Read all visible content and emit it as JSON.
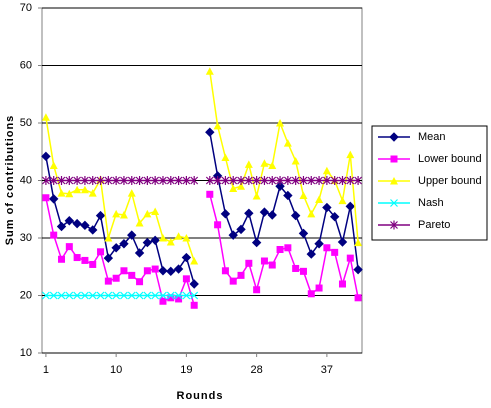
{
  "chart_data": {
    "type": "line",
    "xlabel": "Rounds",
    "ylabel": "Sum of contributions",
    "categories": [
      "1",
      null,
      null,
      null,
      null,
      null,
      null,
      null,
      null,
      "10",
      null,
      null,
      null,
      null,
      null,
      null,
      null,
      null,
      "19",
      null,
      null,
      null,
      null,
      null,
      null,
      null,
      null,
      "28",
      null,
      null,
      null,
      null,
      null,
      null,
      null,
      null,
      "37",
      null,
      null,
      null,
      null
    ],
    "ylim": [
      10,
      70
    ],
    "yticks": [
      10,
      20,
      30,
      40,
      50,
      60,
      70
    ],
    "grid": true,
    "legend": "right",
    "series": [
      {
        "name": "Mean",
        "color": "#000080",
        "marker": "diamond",
        "values": [
          44.2,
          36.8,
          32,
          33,
          32.5,
          32.2,
          31.4,
          33.9,
          26.5,
          28.3,
          29,
          30.5,
          27.4,
          29.2,
          29.6,
          24.3,
          24.2,
          24.6,
          26.6,
          22,
          null,
          48.4,
          40.8,
          34.2,
          30.5,
          31.5,
          34.3,
          29.2,
          34.5,
          34,
          39,
          37.4,
          33.9,
          30.8,
          27.2,
          29,
          35.3,
          33.7,
          29.3,
          35.5,
          24.5
        ]
      },
      {
        "name": "Lower bound",
        "color": "#ff00ff",
        "marker": "square",
        "values": [
          37,
          30.5,
          26.3,
          28.5,
          26.6,
          26.1,
          25.4,
          27.6,
          22.5,
          23,
          24.3,
          23.5,
          22.4,
          24.3,
          24.6,
          19,
          19.6,
          19.4,
          22.9,
          18.3,
          null,
          37.6,
          32.3,
          24.3,
          22.5,
          23.5,
          25.6,
          21,
          26,
          25.3,
          28,
          28.3,
          24.7,
          24.2,
          20.3,
          21.3,
          28.3,
          27.5,
          22,
          26.5,
          19.6
        ]
      },
      {
        "name": "Upper bound",
        "color": "#ffff00",
        "marker": "triangle",
        "values": [
          51,
          42.6,
          37.8,
          37.7,
          38.4,
          38.4,
          37.8,
          40.2,
          30,
          34.2,
          34,
          37.8,
          32.6,
          34.2,
          34.6,
          30,
          29.3,
          30.3,
          30,
          26,
          null,
          59,
          49.5,
          44,
          38.6,
          39,
          42.8,
          37.3,
          43,
          42.6,
          50,
          46.5,
          43.4,
          37.4,
          34.2,
          36.7,
          41.7,
          40,
          36.5,
          44.5,
          29.2
        ]
      },
      {
        "name": "Nash",
        "color": "#00ffff",
        "marker": "x",
        "values": [
          20,
          20,
          20,
          20,
          20,
          20,
          20,
          20,
          20,
          20,
          20,
          20,
          20,
          20,
          20,
          20,
          20,
          20,
          20,
          20,
          null,
          null,
          null,
          null,
          null,
          null,
          null,
          null,
          null,
          null,
          null,
          null,
          null,
          null,
          null,
          null,
          null,
          null,
          null,
          null,
          null
        ]
      },
      {
        "name": "Pareto",
        "color": "#800080",
        "marker": "star",
        "values": [
          40,
          40,
          40,
          40,
          40,
          40,
          40,
          40,
          40,
          40,
          40,
          40,
          40,
          40,
          40,
          40,
          40,
          40,
          40,
          40,
          null,
          40,
          40,
          40,
          40,
          40,
          40,
          40,
          40,
          40,
          40,
          40,
          40,
          40,
          40,
          40,
          40,
          40,
          40,
          40,
          40
        ]
      }
    ]
  }
}
